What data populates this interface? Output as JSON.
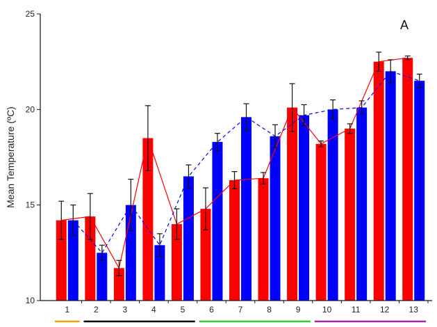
{
  "chart_data": {
    "type": "bar",
    "panel_label": "A",
    "ylabel": "Mean Temperature (ºC)",
    "xlabel": "",
    "ylim": [
      10,
      25
    ],
    "yticks": [
      10,
      15,
      20,
      25
    ],
    "categories": [
      "1",
      "2",
      "3",
      "4",
      "5",
      "6",
      "7",
      "8",
      "9",
      "10",
      "11",
      "12",
      "13"
    ],
    "series": [
      {
        "color": "#ff0000",
        "line_style": "solid",
        "values": [
          14.2,
          14.4,
          11.7,
          18.5,
          14.0,
          14.8,
          16.3,
          16.4,
          20.1,
          18.2,
          19.0,
          22.5,
          22.7
        ],
        "errors": [
          1.0,
          1.2,
          0.4,
          1.7,
          0.8,
          1.1,
          0.45,
          0.3,
          1.25,
          0.15,
          0.25,
          0.5,
          0.1
        ]
      },
      {
        "color": "#0000ff",
        "line_style": "dashed",
        "values": [
          14.2,
          12.5,
          15.0,
          12.9,
          16.5,
          18.3,
          19.6,
          18.6,
          19.7,
          20.0,
          20.1,
          22.0,
          21.5
        ],
        "errors": [
          0.8,
          0.4,
          1.35,
          0.6,
          0.6,
          0.45,
          0.7,
          0.6,
          0.55,
          0.5,
          0.35,
          0.6,
          0.35
        ]
      }
    ],
    "grid": false,
    "group_underlines": [
      {
        "color": "#f5a000",
        "from_category": "1",
        "to_category": "1"
      },
      {
        "color": "#000000",
        "from_category": "2",
        "to_category": "5"
      },
      {
        "color": "#33cc33",
        "from_category": "6",
        "to_category": "9"
      },
      {
        "color": "#aa22aa",
        "from_category": "10",
        "to_category": "13"
      }
    ]
  }
}
